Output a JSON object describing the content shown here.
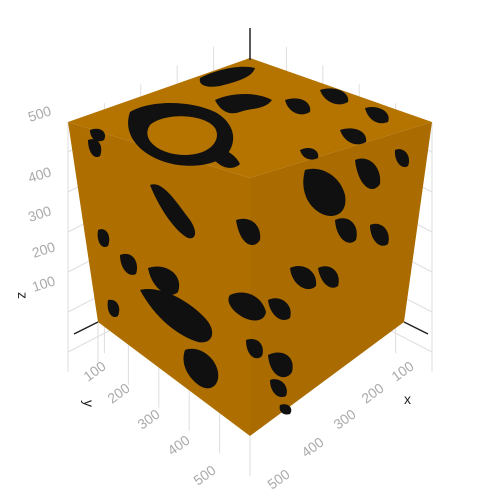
{
  "chart_data": {
    "type": "volume",
    "title": "",
    "axes": {
      "x": {
        "label": "x",
        "range": [
          0,
          500
        ],
        "ticks": [
          "100",
          "200",
          "300",
          "400",
          "500"
        ]
      },
      "y": {
        "label": "y",
        "range": [
          0,
          500
        ],
        "ticks": [
          "100",
          "200",
          "300",
          "400",
          "500"
        ]
      },
      "z": {
        "label": "z",
        "range": [
          0,
          500
        ],
        "ticks": [
          "100",
          "200",
          "300",
          "400",
          "500"
        ]
      }
    },
    "grid": true,
    "colors": {
      "solid": "#b57300",
      "pore": "#111111",
      "grid": "#dedede",
      "axis": "#222222",
      "tick_text": "#aaaaaa"
    }
  }
}
